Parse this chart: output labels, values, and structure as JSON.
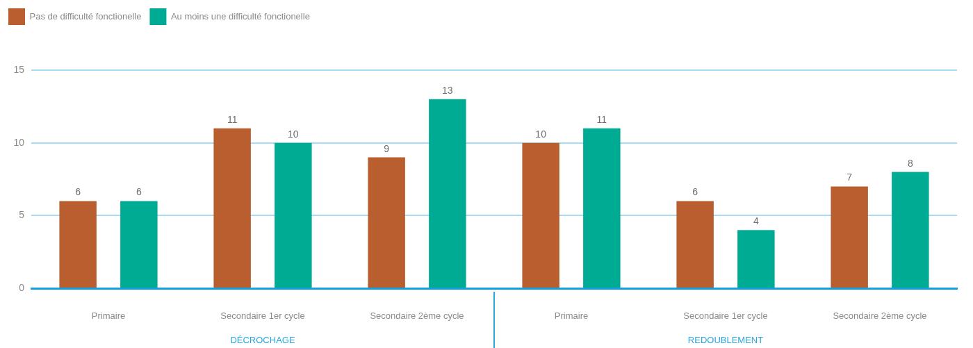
{
  "chart_data": [
    {
      "type": "bar",
      "categories": [
        "Primaire",
        "Secondaire 1er cycle",
        "Secondaire 2ème cycle"
      ],
      "xlabel": "DÉCROCHAGE",
      "series": [
        {
          "name": "Pas de difficulté fonctionelle",
          "color": "#b95f2f",
          "values": [
            6,
            11,
            9
          ]
        },
        {
          "name": "Au moins une difficulté fonctionelle",
          "color": "#00ab94",
          "values": [
            6,
            10,
            13
          ]
        }
      ],
      "ylim": [
        0,
        15
      ],
      "yticks": [
        0,
        5,
        10,
        15
      ],
      "grid": "y",
      "legend": "top left",
      "data_labels": true
    },
    {
      "type": "bar",
      "categories": [
        "Primaire",
        "Secondaire 1er cycle",
        "Secondaire 2ème cycle"
      ],
      "xlabel": "REDOUBLEMENT",
      "series": [
        {
          "color": "#b95f2f",
          "values": [
            10,
            6,
            7
          ]
        },
        {
          "color": "#00ab94",
          "values": [
            11,
            4,
            8
          ]
        }
      ],
      "ylim": [
        0,
        15
      ],
      "yticks": [
        0,
        5,
        10,
        15
      ],
      "grid": "y",
      "tick_labels": "x",
      "data_labels": true
    }
  ]
}
